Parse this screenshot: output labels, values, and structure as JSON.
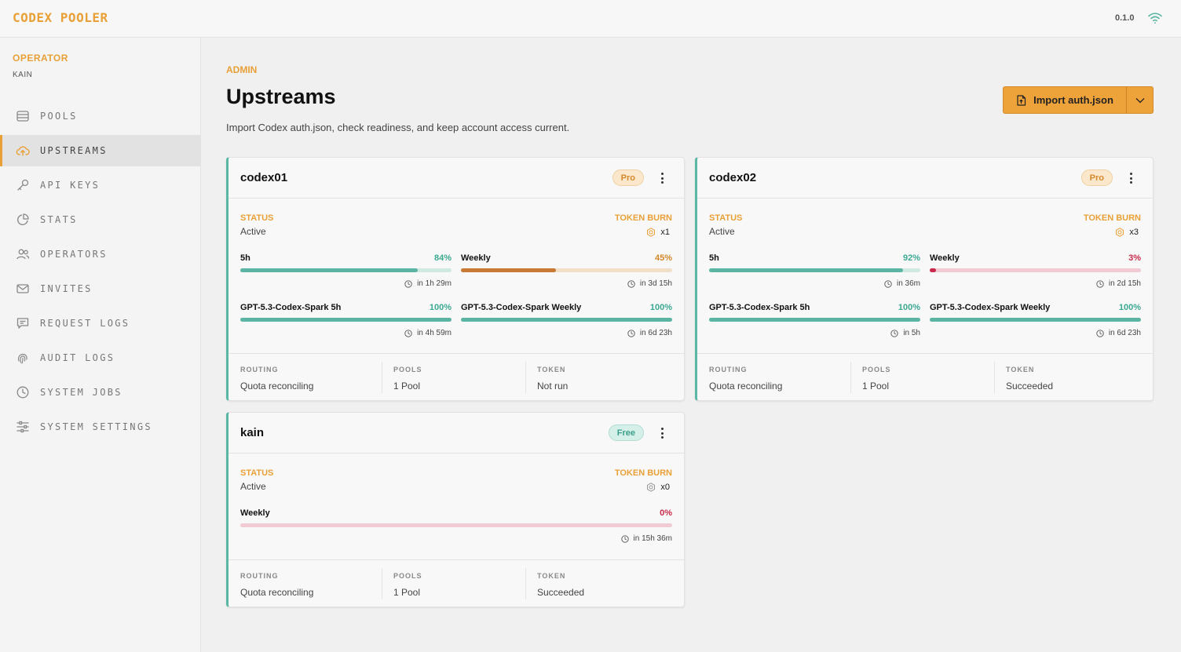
{
  "app": {
    "brand": "CODEX POOLER",
    "version": "0.1.0"
  },
  "sidebar": {
    "operator_label": "OPERATOR",
    "operator_name": "KAIN",
    "items": [
      {
        "label": "POOLS",
        "icon": "database-icon",
        "active": false
      },
      {
        "label": "UPSTREAMS",
        "icon": "cloud-upload-icon",
        "active": true
      },
      {
        "label": "API KEYS",
        "icon": "key-icon",
        "active": false
      },
      {
        "label": "STATS",
        "icon": "pie-chart-icon",
        "active": false
      },
      {
        "label": "OPERATORS",
        "icon": "users-icon",
        "active": false
      },
      {
        "label": "INVITES",
        "icon": "mail-icon",
        "active": false
      },
      {
        "label": "REQUEST LOGS",
        "icon": "message-icon",
        "active": false
      },
      {
        "label": "AUDIT LOGS",
        "icon": "fingerprint-icon",
        "active": false
      },
      {
        "label": "SYSTEM JOBS",
        "icon": "clock-icon",
        "active": false
      },
      {
        "label": "SYSTEM SETTINGS",
        "icon": "sliders-icon",
        "active": false
      }
    ]
  },
  "header": {
    "breadcrumb": "ADMIN",
    "title": "Upstreams",
    "subtitle": "Import Codex auth.json, check readiness, and keep account access current.",
    "import_label": "Import auth.json"
  },
  "labels": {
    "status": "STATUS",
    "token_burn": "TOKEN BURN",
    "routing": "ROUTING",
    "pools": "POOLS",
    "token": "TOKEN"
  },
  "colors": {
    "accent": "#e8a037",
    "teal": "#5bb5a2",
    "teal_track": "#cfe9e3",
    "orange": "#c87a34",
    "orange_track": "#f1dfc8",
    "red": "#c92a4b",
    "red_track": "#f0cbd3",
    "pct_teal": "#3ba891",
    "pct_orange": "#d4882a",
    "pct_red": "#c92a4b"
  },
  "cards": [
    {
      "name": "codex01",
      "plan": "Pro",
      "status": "Active",
      "burn": "x1",
      "quotas": [
        {
          "name": "5h",
          "pct": "84%",
          "value": 0.84,
          "reset": "in 1h 29m",
          "tone": "teal"
        },
        {
          "name": "Weekly",
          "pct": "45%",
          "value": 0.45,
          "reset": "in 3d 15h",
          "tone": "orange"
        },
        {
          "name": "GPT-5.3-Codex-Spark 5h",
          "pct": "100%",
          "value": 1.0,
          "reset": "in 4h 59m",
          "tone": "teal"
        },
        {
          "name": "GPT-5.3-Codex-Spark Weekly",
          "pct": "100%",
          "value": 1.0,
          "reset": "in 6d 23h",
          "tone": "teal"
        }
      ],
      "routing": "Quota reconciling",
      "pools": "1 Pool",
      "token": "Not run"
    },
    {
      "name": "codex02",
      "plan": "Pro",
      "status": "Active",
      "burn": "x3",
      "quotas": [
        {
          "name": "5h",
          "pct": "92%",
          "value": 0.92,
          "reset": "in 36m",
          "tone": "teal"
        },
        {
          "name": "Weekly",
          "pct": "3%",
          "value": 0.03,
          "reset": "in 2d 15h",
          "tone": "red"
        },
        {
          "name": "GPT-5.3-Codex-Spark 5h",
          "pct": "100%",
          "value": 1.0,
          "reset": "in 5h",
          "tone": "teal"
        },
        {
          "name": "GPT-5.3-Codex-Spark Weekly",
          "pct": "100%",
          "value": 1.0,
          "reset": "in 6d 23h",
          "tone": "teal"
        }
      ],
      "routing": "Quota reconciling",
      "pools": "1 Pool",
      "token": "Succeeded"
    },
    {
      "name": "kain",
      "plan": "Free",
      "status": "Active",
      "burn": "x0",
      "quotas": [
        {
          "name": "Weekly",
          "pct": "0%",
          "value": 0.0,
          "reset": "in 15h 36m",
          "tone": "red"
        }
      ],
      "routing": "Quota reconciling",
      "pools": "1 Pool",
      "token": "Succeeded"
    }
  ]
}
